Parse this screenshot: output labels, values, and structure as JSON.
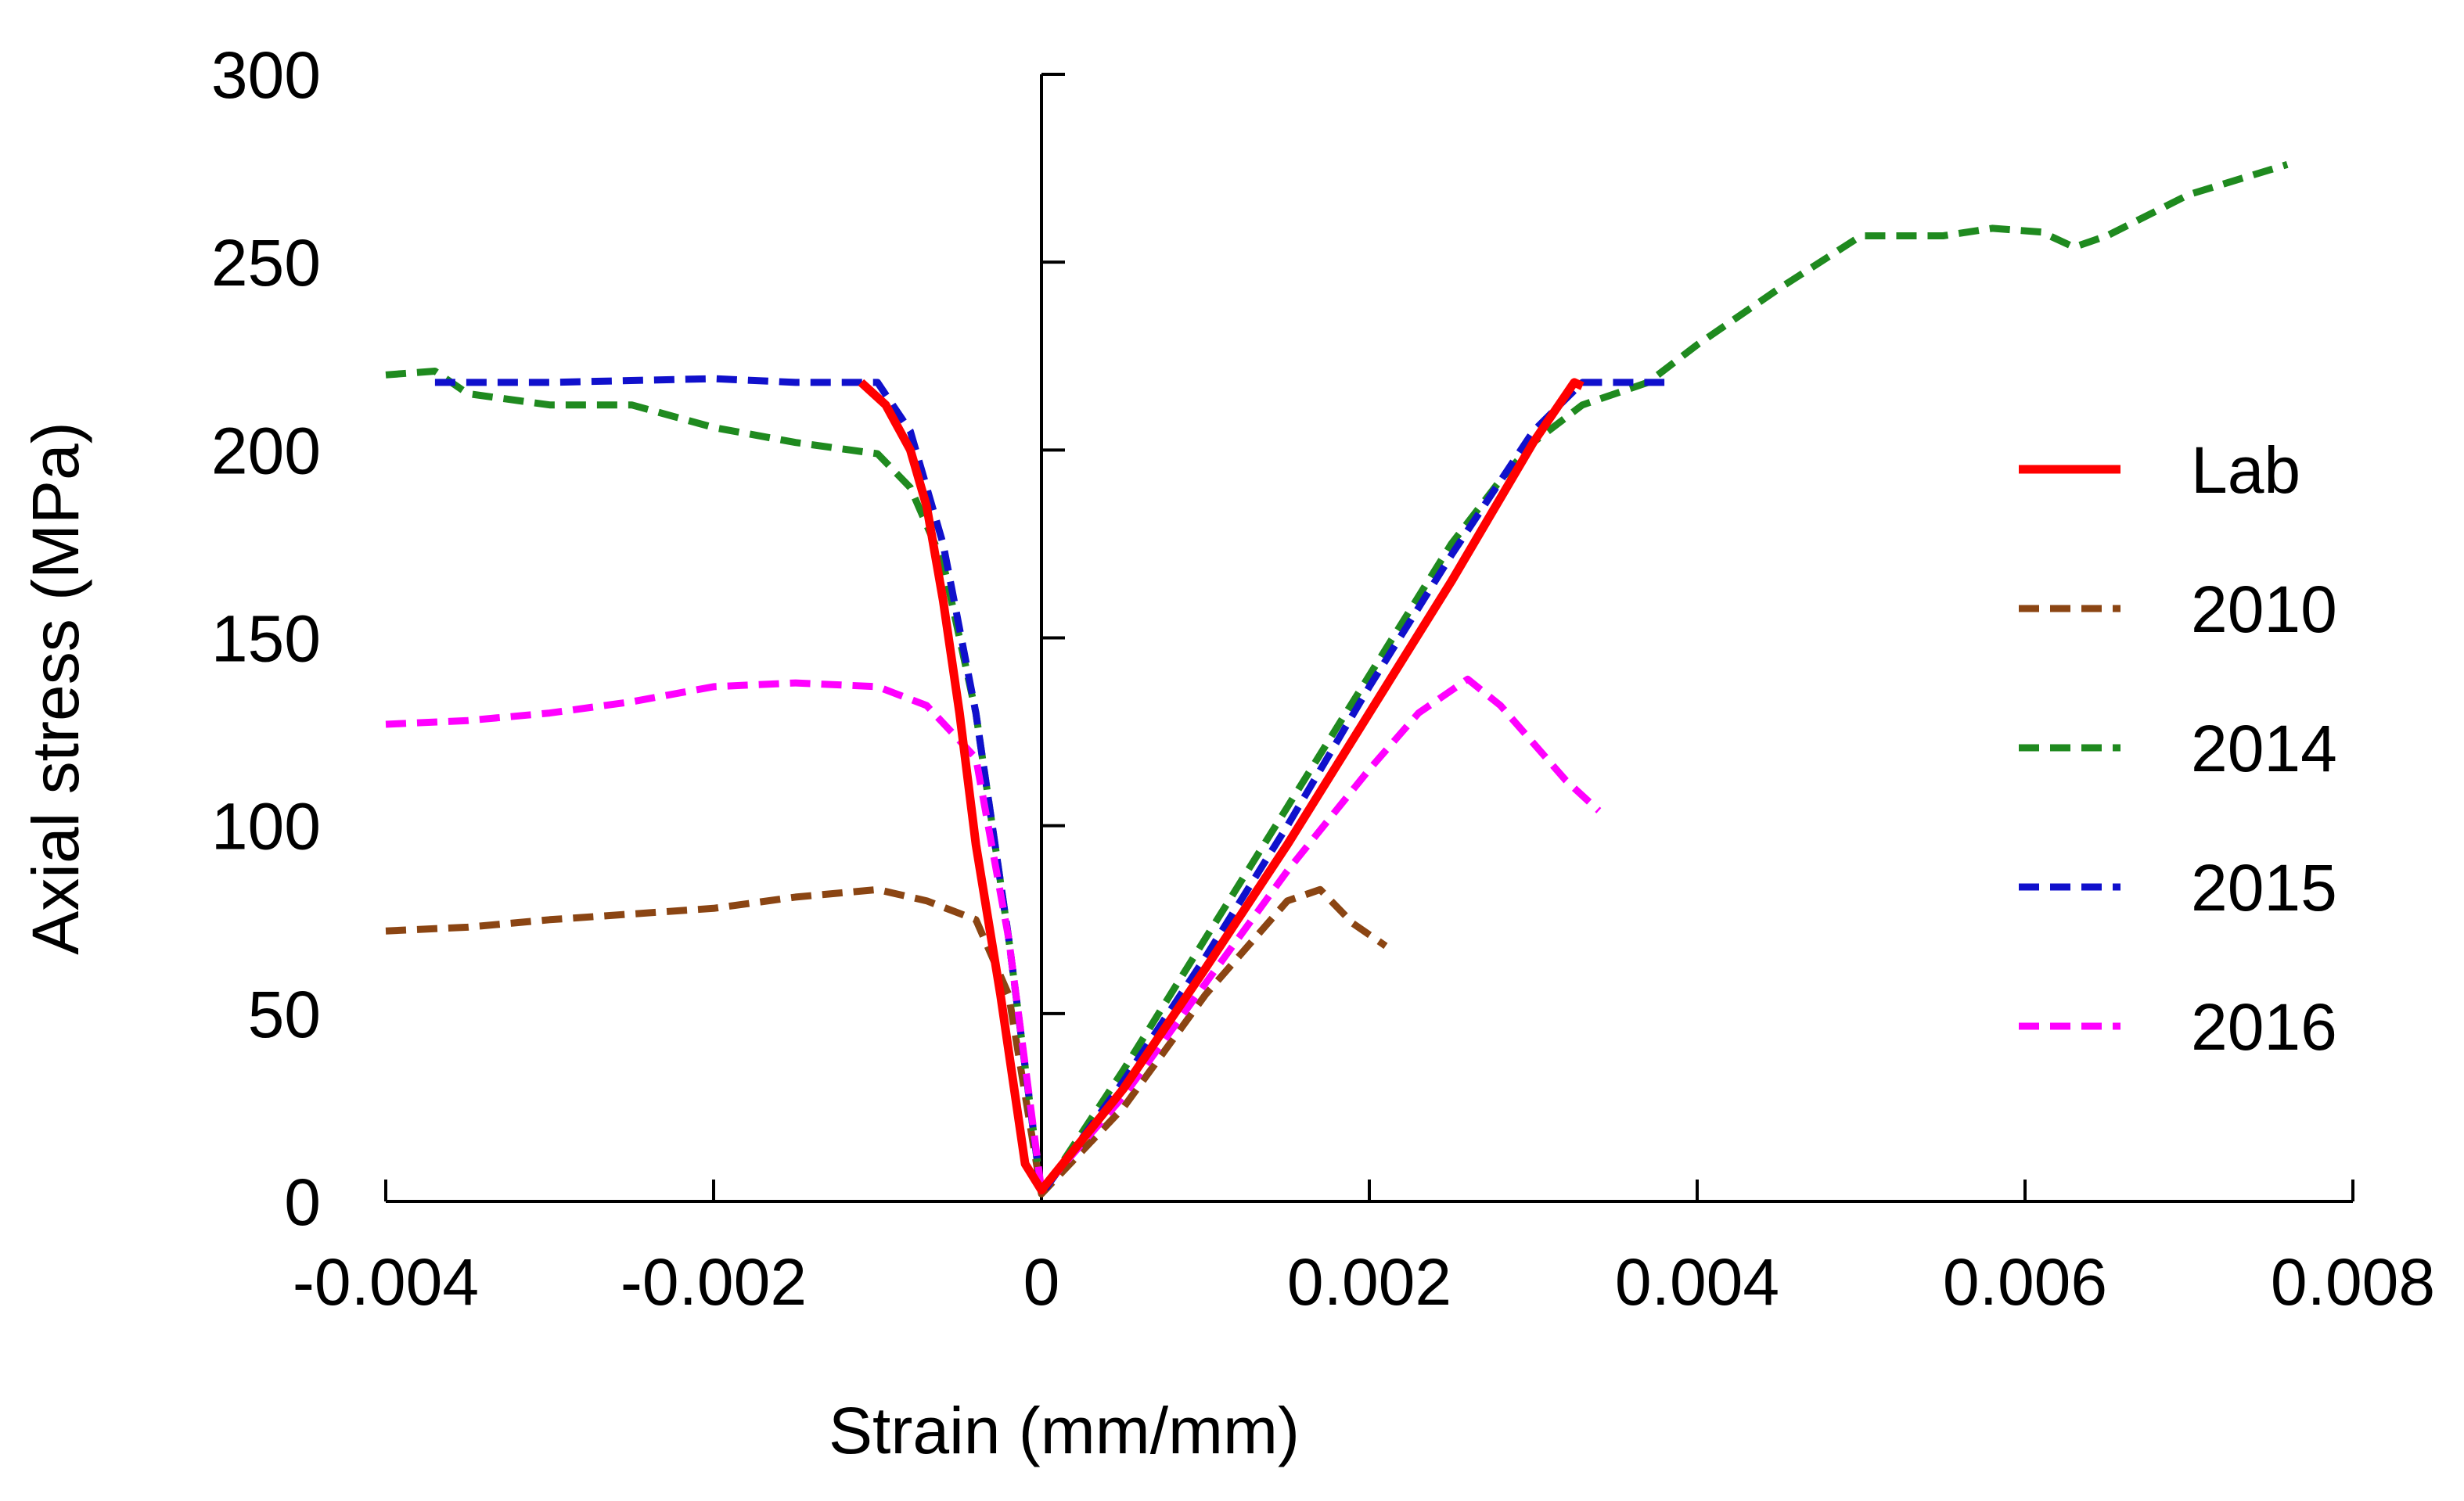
{
  "chart_data": {
    "type": "line",
    "title": "",
    "xlabel": "Strain (mm/mm)",
    "ylabel": "Axial stress (MPa)",
    "xlim": [
      -0.004,
      0.008
    ],
    "ylim": [
      0,
      300
    ],
    "grid": false,
    "legend_position": "right",
    "xticks": [
      {
        "value": -0.004,
        "label": "-0.004"
      },
      {
        "value": -0.002,
        "label": "-0.002"
      },
      {
        "value": 0,
        "label": "0"
      },
      {
        "value": 0.002,
        "label": "0.002"
      },
      {
        "value": 0.004,
        "label": "0.004"
      },
      {
        "value": 0.006,
        "label": "0.006"
      },
      {
        "value": 0.008,
        "label": "0.008"
      }
    ],
    "yticks": [
      {
        "value": 0,
        "label": "0"
      },
      {
        "value": 50,
        "label": "50"
      },
      {
        "value": 100,
        "label": "100"
      },
      {
        "value": 150,
        "label": "150"
      },
      {
        "value": 200,
        "label": "200"
      },
      {
        "value": 250,
        "label": "250"
      },
      {
        "value": 300,
        "label": "300"
      }
    ],
    "series": [
      {
        "name": "Lab",
        "color": "#ff0000",
        "dashed": false,
        "points": [
          [
            -0.0011,
            218
          ],
          [
            -0.00095,
            212
          ],
          [
            -0.0008,
            200
          ],
          [
            -0.0007,
            185
          ],
          [
            -0.0006,
            160
          ],
          [
            -0.0005,
            130
          ],
          [
            -0.0004,
            95
          ],
          [
            -0.00025,
            55
          ],
          [
            -0.0001,
            10
          ],
          [
            0,
            3
          ],
          [
            0.0005,
            30
          ],
          [
            0.001,
            62
          ],
          [
            0.0015,
            95
          ],
          [
            0.002,
            130
          ],
          [
            0.0025,
            165
          ],
          [
            0.003,
            202
          ],
          [
            0.00325,
            218
          ],
          [
            0.0033,
            217
          ]
        ]
      },
      {
        "name": "2010",
        "color": "#8b4513",
        "dashed": true,
        "points": [
          [
            -0.004,
            72
          ],
          [
            -0.0035,
            73
          ],
          [
            -0.003,
            75
          ],
          [
            -0.002,
            78
          ],
          [
            -0.0015,
            81
          ],
          [
            -0.001,
            83
          ],
          [
            -0.0007,
            80
          ],
          [
            -0.0004,
            75
          ],
          [
            -0.0002,
            55
          ],
          [
            0,
            2
          ],
          [
            0.0005,
            25
          ],
          [
            0.001,
            55
          ],
          [
            0.0015,
            80
          ],
          [
            0.0017,
            83
          ],
          [
            0.0019,
            74
          ],
          [
            0.0021,
            68
          ]
        ]
      },
      {
        "name": "2014",
        "color": "#1f8a1f",
        "dashed": true,
        "points": [
          [
            -0.004,
            220
          ],
          [
            -0.0037,
            221
          ],
          [
            -0.0035,
            215
          ],
          [
            -0.003,
            212
          ],
          [
            -0.0025,
            212
          ],
          [
            -0.002,
            206
          ],
          [
            -0.0015,
            202
          ],
          [
            -0.001,
            199
          ],
          [
            -0.0008,
            190
          ],
          [
            -0.0006,
            170
          ],
          [
            -0.0004,
            130
          ],
          [
            -0.0002,
            70
          ],
          [
            0,
            2
          ],
          [
            0.0005,
            35
          ],
          [
            0.001,
            70
          ],
          [
            0.0015,
            105
          ],
          [
            0.002,
            140
          ],
          [
            0.0025,
            175
          ],
          [
            0.0028,
            192
          ],
          [
            0.003,
            202
          ],
          [
            0.0033,
            212
          ],
          [
            0.0037,
            218
          ],
          [
            0.004,
            228
          ],
          [
            0.0045,
            243
          ],
          [
            0.005,
            257
          ],
          [
            0.0055,
            257
          ],
          [
            0.0058,
            259
          ],
          [
            0.0061,
            258
          ],
          [
            0.0063,
            254
          ],
          [
            0.0065,
            257
          ],
          [
            0.007,
            268
          ],
          [
            0.0076,
            276
          ]
        ]
      },
      {
        "name": "2015",
        "color": "#1010cc",
        "dashed": true,
        "points": [
          [
            -0.0037,
            218
          ],
          [
            -0.003,
            218
          ],
          [
            -0.002,
            219
          ],
          [
            -0.0015,
            218
          ],
          [
            -0.001,
            218
          ],
          [
            -0.0008,
            205
          ],
          [
            -0.0006,
            175
          ],
          [
            -0.0004,
            130
          ],
          [
            -0.0002,
            70
          ],
          [
            0,
            2
          ],
          [
            0.0005,
            32
          ],
          [
            0.001,
            65
          ],
          [
            0.0015,
            100
          ],
          [
            0.002,
            137
          ],
          [
            0.0025,
            172
          ],
          [
            0.003,
            205
          ],
          [
            0.0033,
            218
          ],
          [
            0.0038,
            218
          ]
        ]
      },
      {
        "name": "2016",
        "color": "#ff00ff",
        "dashed": true,
        "points": [
          [
            -0.004,
            127
          ],
          [
            -0.0035,
            128
          ],
          [
            -0.003,
            130
          ],
          [
            -0.0025,
            133
          ],
          [
            -0.002,
            137
          ],
          [
            -0.0015,
            138
          ],
          [
            -0.001,
            137
          ],
          [
            -0.0007,
            132
          ],
          [
            -0.0004,
            118
          ],
          [
            -0.0002,
            70
          ],
          [
            0,
            3
          ],
          [
            0.0005,
            28
          ],
          [
            0.001,
            58
          ],
          [
            0.0015,
            88
          ],
          [
            0.002,
            115
          ],
          [
            0.0023,
            130
          ],
          [
            0.0026,
            139
          ],
          [
            0.0028,
            132
          ],
          [
            0.003,
            122
          ],
          [
            0.0032,
            112
          ],
          [
            0.0034,
            104
          ]
        ]
      }
    ]
  }
}
